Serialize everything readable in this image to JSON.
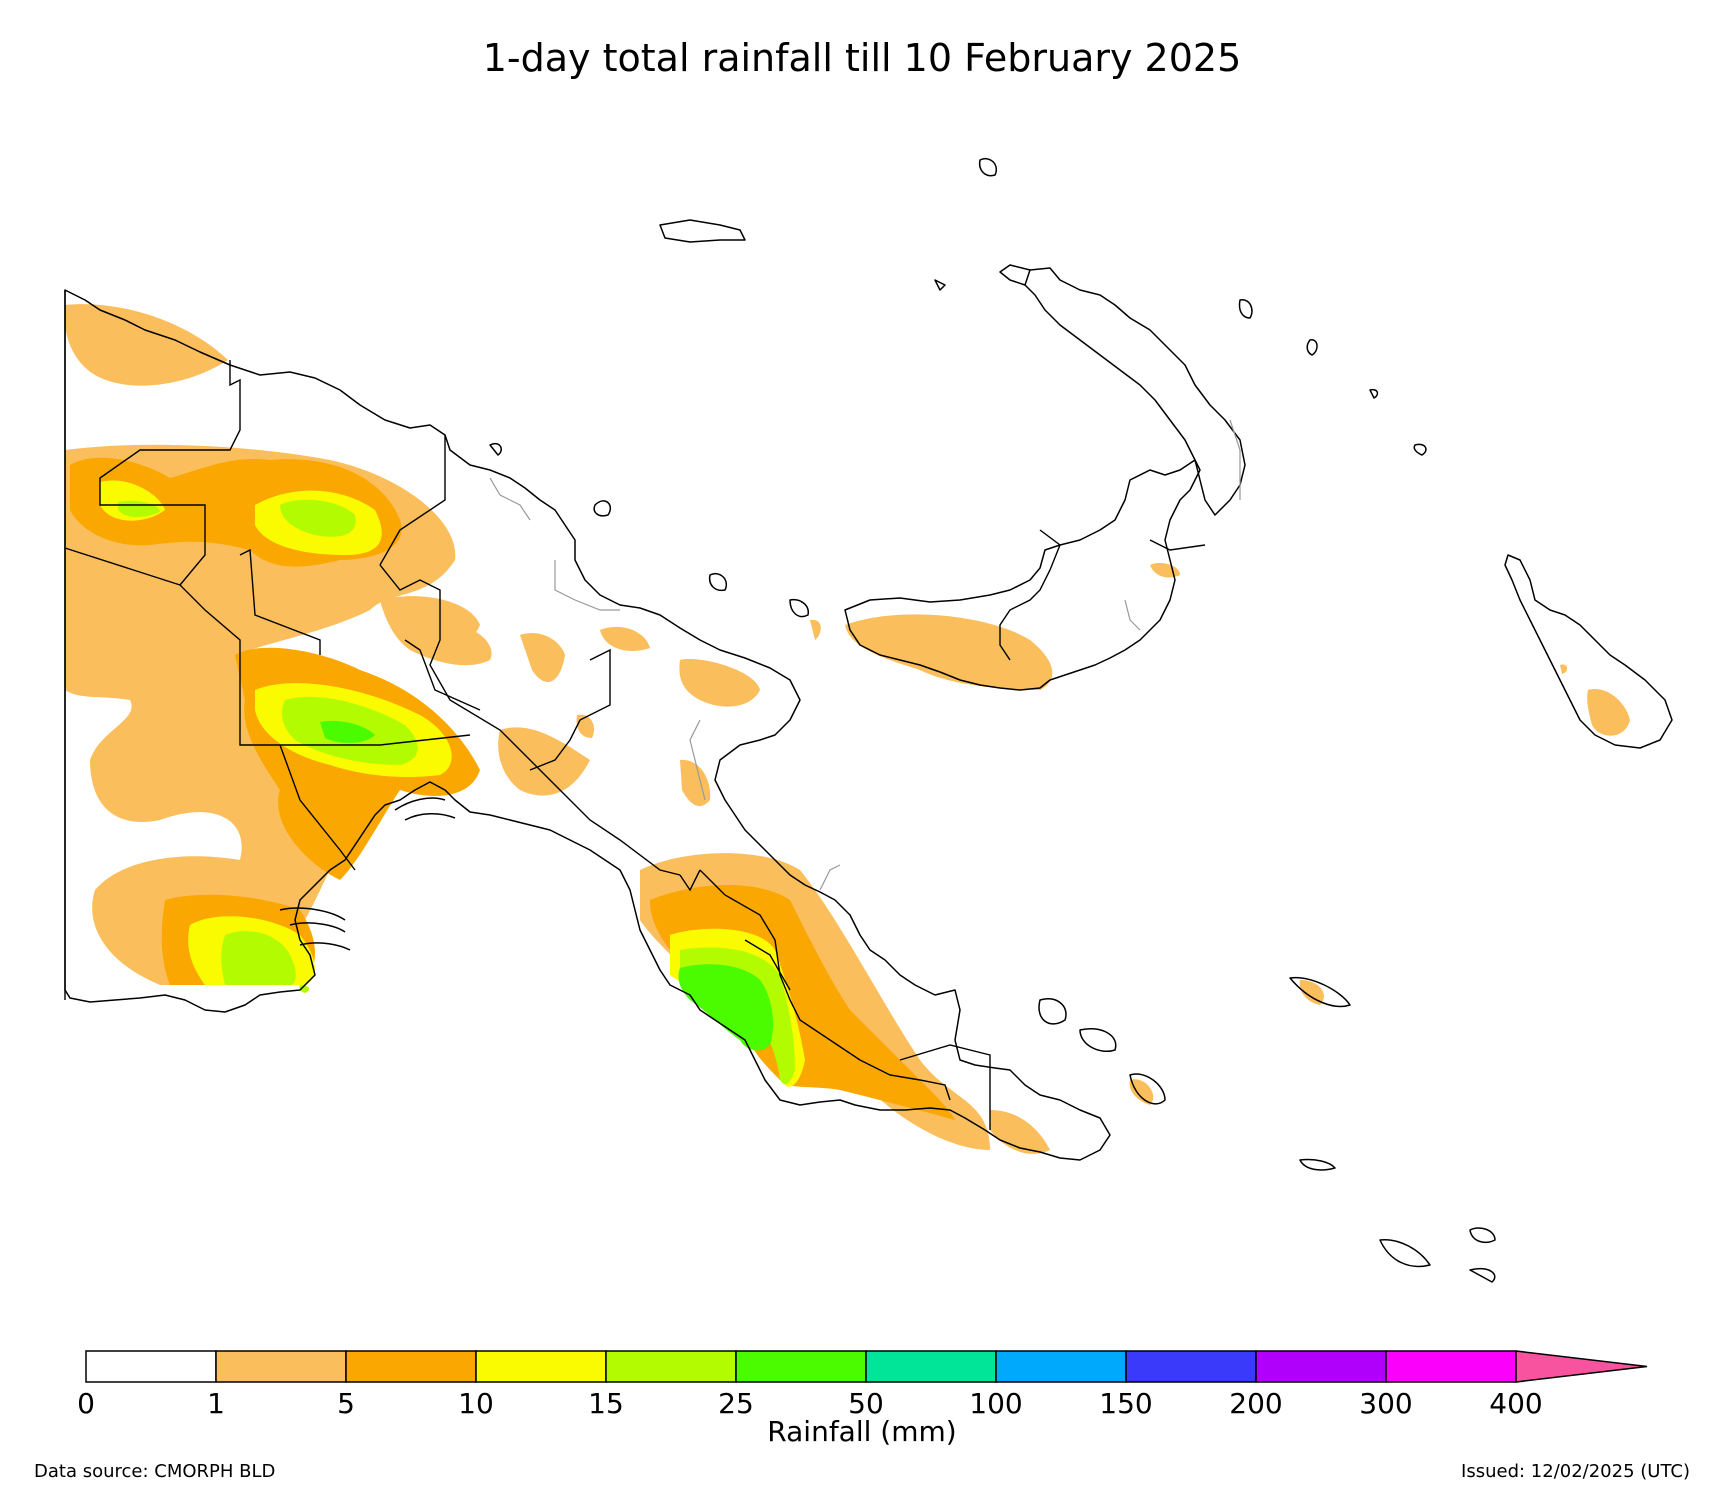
{
  "title": "1-day total rainfall till 10 February 2025",
  "colorbar": {
    "label": "Rainfall (mm)",
    "ticks": [
      "0",
      "1",
      "5",
      "10",
      "15",
      "25",
      "50",
      "100",
      "150",
      "200",
      "300",
      "400"
    ],
    "colors": [
      "#ffffff",
      "#fbbe5c",
      "#fba701",
      "#fbfb00",
      "#b3fb00",
      "#4bfb00",
      "#00e598",
      "#00a9fb",
      "#3a3afb",
      "#b000fb",
      "#fb00fb",
      "#f8539e"
    ]
  },
  "footer": {
    "source": "Data source: CMORPH BLD",
    "issued": "Issued: 12/02/2025 (UTC)"
  }
}
